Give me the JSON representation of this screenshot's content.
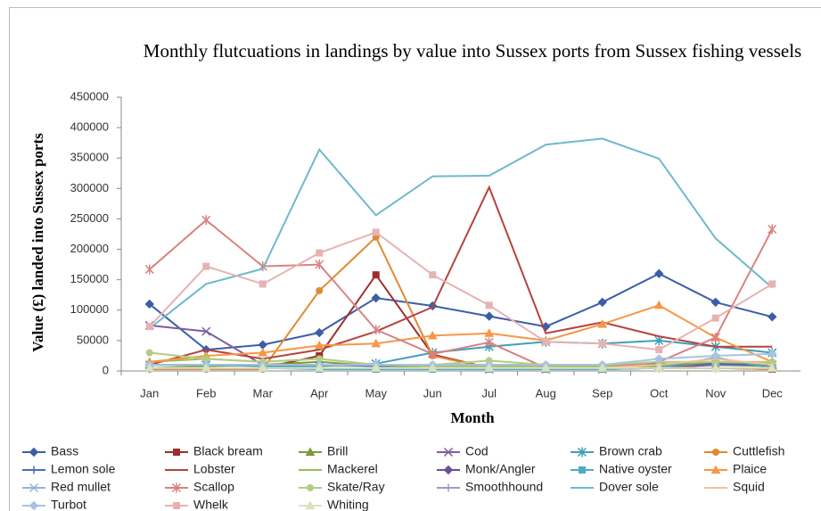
{
  "chart_data": {
    "type": "line",
    "title": "Monthly flutcuations in landings by value into Sussex ports from Sussex fishing vessels",
    "x_label": "Month",
    "y_label": "Value (£) landed into Sussex ports",
    "categories": [
      "Jan",
      "Feb",
      "Mar",
      "Apr",
      "May",
      "Jun",
      "Jul",
      "Aug",
      "Sep",
      "Oct",
      "Nov",
      "Dec"
    ],
    "ylim": [
      0,
      450000
    ],
    "yticks": [
      0,
      50000,
      100000,
      150000,
      200000,
      250000,
      300000,
      350000,
      400000,
      450000
    ],
    "grid": false,
    "legend": "bottom",
    "series": [
      {
        "name": "Bass",
        "color": "#3b5ea8",
        "marker": "diamond",
        "values": [
          110000,
          35000,
          43000,
          63000,
          120000,
          107000,
          90000,
          73000,
          113000,
          160000,
          113000,
          89000
        ]
      },
      {
        "name": "Black bream",
        "color": "#9c2f2c",
        "marker": "square",
        "values": [
          5000,
          5000,
          5000,
          25000,
          158000,
          27000,
          5000,
          3000,
          5000,
          5000,
          5000,
          3000
        ]
      },
      {
        "name": "Brill",
        "color": "#7a9a3a",
        "marker": "triangle",
        "values": [
          5000,
          8000,
          10000,
          15000,
          8000,
          5000,
          5000,
          5000,
          5000,
          8000,
          10000,
          8000
        ]
      },
      {
        "name": "Cod",
        "color": "#7d5f9e",
        "marker": "x",
        "values": [
          75000,
          65000,
          10000,
          5000,
          5000,
          5000,
          3000,
          3000,
          3000,
          5000,
          10000,
          10000
        ]
      },
      {
        "name": "Brown crab",
        "color": "#3f9fb8",
        "marker": "asterisk",
        "values": [
          10000,
          10000,
          8000,
          8000,
          12000,
          30000,
          40000,
          48000,
          45000,
          50000,
          40000,
          30000
        ]
      },
      {
        "name": "Cuttlefish",
        "color": "#e08a35",
        "marker": "circle",
        "values": [
          3000,
          3000,
          3000,
          132000,
          220000,
          25000,
          5000,
          3000,
          3000,
          5000,
          5000,
          3000
        ]
      },
      {
        "name": "Lemon sole",
        "color": "#4a6fb0",
        "marker": "plus",
        "values": [
          10000,
          10000,
          10000,
          10000,
          8000,
          10000,
          10000,
          10000,
          10000,
          12000,
          12000,
          10000
        ]
      },
      {
        "name": "Lobster",
        "color": "#b5433f",
        "marker": "none",
        "values": [
          10000,
          35000,
          20000,
          35000,
          65000,
          105000,
          302000,
          62000,
          80000,
          57000,
          40000,
          40000
        ]
      },
      {
        "name": "Mackerel",
        "color": "#9bbb59",
        "marker": "none",
        "values": [
          15000,
          20000,
          15000,
          20000,
          10000,
          8000,
          8000,
          8000,
          8000,
          10000,
          15000,
          12000
        ]
      },
      {
        "name": "Monk/Angler",
        "color": "#6b4f94",
        "marker": "diamond",
        "values": [
          5000,
          5000,
          5000,
          5000,
          5000,
          5000,
          5000,
          5000,
          5000,
          5000,
          5000,
          5000
        ]
      },
      {
        "name": "Native oyster",
        "color": "#4bacc6",
        "marker": "square",
        "values": [
          5000,
          5000,
          5000,
          3000,
          3000,
          3000,
          3000,
          3000,
          3000,
          5000,
          22000,
          5000
        ]
      },
      {
        "name": "Plaice",
        "color": "#f79646",
        "marker": "triangle",
        "values": [
          15000,
          25000,
          30000,
          42000,
          45000,
          58000,
          62000,
          50000,
          77000,
          108000,
          55000,
          15000
        ]
      },
      {
        "name": "Red mullet",
        "color": "#95b3d7",
        "marker": "x",
        "values": [
          5000,
          5000,
          5000,
          5000,
          5000,
          5000,
          5000,
          5000,
          5000,
          5000,
          5000,
          5000
        ]
      },
      {
        "name": "Scallop",
        "color": "#d9827f",
        "marker": "asterisk",
        "values": [
          167000,
          248000,
          172000,
          175000,
          68000,
          28000,
          47000,
          5000,
          5000,
          15000,
          55000,
          233000
        ]
      },
      {
        "name": "Skate/Ray",
        "color": "#b3cc82",
        "marker": "circle",
        "values": [
          30000,
          20000,
          15000,
          20000,
          10000,
          10000,
          17000,
          10000,
          10000,
          15000,
          15000,
          15000
        ]
      },
      {
        "name": "Smoothhound",
        "color": "#a994c4",
        "marker": "plus",
        "values": [
          5000,
          5000,
          5000,
          5000,
          5000,
          5000,
          5000,
          5000,
          5000,
          5000,
          5000,
          5000
        ]
      },
      {
        "name": "Dover sole",
        "color": "#6fb8cc",
        "marker": "none",
        "values": [
          70000,
          143000,
          168000,
          364000,
          256000,
          320000,
          321000,
          372000,
          382000,
          349000,
          218000,
          137000
        ]
      },
      {
        "name": "Squid",
        "color": "#fac090",
        "marker": "none",
        "values": [
          5000,
          5000,
          5000,
          5000,
          5000,
          5000,
          5000,
          5000,
          5000,
          10000,
          20000,
          10000
        ]
      },
      {
        "name": "Turbot",
        "color": "#a9c2e0",
        "marker": "diamond",
        "values": [
          10000,
          10000,
          10000,
          10000,
          10000,
          10000,
          10000,
          10000,
          10000,
          20000,
          25000,
          28000
        ]
      },
      {
        "name": "Whelk",
        "color": "#e6b3b2",
        "marker": "square",
        "values": [
          73000,
          172000,
          143000,
          194000,
          228000,
          158000,
          108000,
          48000,
          45000,
          35000,
          87000,
          143000
        ]
      },
      {
        "name": "Whiting",
        "color": "#d7e4bd",
        "marker": "triangle",
        "values": [
          5000,
          5000,
          5000,
          5000,
          5000,
          5000,
          5000,
          5000,
          5000,
          5000,
          5000,
          5000
        ]
      }
    ]
  }
}
